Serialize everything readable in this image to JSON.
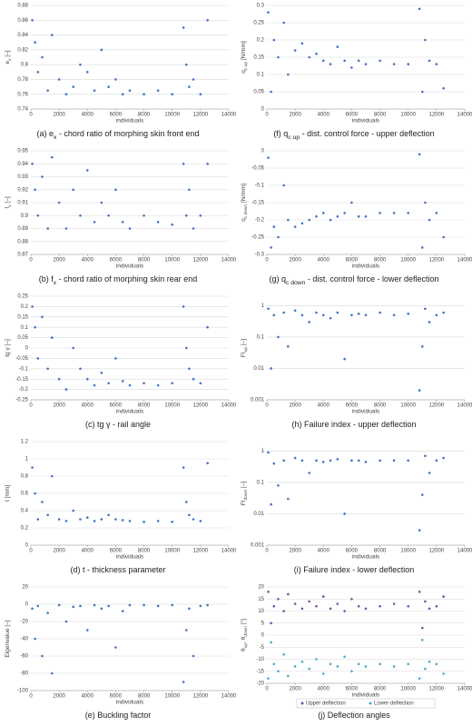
{
  "chart_data": [
    {
      "type": "scatter",
      "color": "#4472c4",
      "grid": true,
      "log": false,
      "ylabel": {
        "text": "e",
        "sub": "x",
        "rest": " [–]"
      },
      "xlabel": "individuals",
      "caption": {
        "text": "(a) e",
        "sub": "x",
        "rest": " - chord ratio of morphing skin front end"
      },
      "xlim": [
        0,
        14000
      ],
      "xticks": [
        0,
        2000,
        4000,
        6000,
        8000,
        10000,
        12000,
        14000
      ],
      "ylim": [
        0.74,
        0.88
      ],
      "yticks": [
        0.74,
        0.76,
        0.78,
        0.8,
        0.82,
        0.84,
        0.86,
        0.88
      ],
      "x": [
        100,
        300,
        500,
        800,
        1200,
        1500,
        2000,
        2500,
        3000,
        3500,
        4000,
        4500,
        5000,
        5500,
        6000,
        6500,
        7000,
        8000,
        9000,
        10000,
        10800,
        11000,
        11200,
        11500,
        12000,
        12500
      ],
      "values": [
        0.86,
        0.83,
        0.79,
        0.81,
        0.765,
        0.84,
        0.78,
        0.76,
        0.77,
        0.8,
        0.79,
        0.765,
        0.82,
        0.77,
        0.78,
        0.76,
        0.765,
        0.76,
        0.765,
        0.76,
        0.85,
        0.8,
        0.77,
        0.78,
        0.76,
        0.86
      ]
    },
    {
      "type": "scatter",
      "color": "#4472c4",
      "grid": true,
      "log": false,
      "ylabel": {
        "text": "q",
        "sub": "c up",
        "rest": " [N/mm]"
      },
      "xlabel": "individuals",
      "caption": {
        "text": "(f) q",
        "sub": "c up",
        "rest": " - dist. control force - upper deflection"
      },
      "xlim": [
        0,
        14000
      ],
      "xticks": [
        0,
        2000,
        4000,
        6000,
        8000,
        10000,
        12000,
        14000
      ],
      "ylim": [
        0,
        0.3
      ],
      "yticks": [
        0,
        0.05,
        0.1,
        0.15,
        0.2,
        0.25,
        0.3
      ],
      "x": [
        100,
        300,
        500,
        800,
        1200,
        1500,
        2000,
        2500,
        3000,
        3500,
        4000,
        4500,
        5000,
        5500,
        6000,
        6500,
        7000,
        8000,
        9000,
        10000,
        10800,
        11000,
        11200,
        11500,
        12000,
        12500
      ],
      "values": [
        0.28,
        0.05,
        0.2,
        0.15,
        0.25,
        0.1,
        0.17,
        0.19,
        0.15,
        0.16,
        0.14,
        0.13,
        0.18,
        0.14,
        0.12,
        0.14,
        0.13,
        0.14,
        0.13,
        0.13,
        0.29,
        0.05,
        0.2,
        0.14,
        0.13,
        0.06
      ]
    },
    {
      "type": "scatter",
      "color": "#4472c4",
      "grid": true,
      "log": false,
      "ylabel": {
        "text": "f",
        "sub": "x",
        "rest": " [–]"
      },
      "xlabel": "individuals",
      "caption": {
        "text": "(b) f",
        "sub": "x",
        "rest": " - chord ratio of morphing skin rear end"
      },
      "xlim": [
        0,
        14000
      ],
      "xticks": [
        0,
        2000,
        4000,
        6000,
        8000,
        10000,
        12000,
        14000
      ],
      "ylim": [
        0.87,
        0.95
      ],
      "yticks": [
        0.87,
        0.88,
        0.89,
        0.9,
        0.91,
        0.92,
        0.93,
        0.94,
        0.95
      ],
      "x": [
        100,
        300,
        500,
        800,
        1200,
        1500,
        2000,
        2500,
        3000,
        3500,
        4000,
        4500,
        5000,
        5500,
        6000,
        6500,
        7000,
        8000,
        9000,
        10000,
        10800,
        11000,
        11200,
        11500,
        12000,
        12500
      ],
      "values": [
        0.94,
        0.92,
        0.9,
        0.93,
        0.89,
        0.945,
        0.91,
        0.89,
        0.92,
        0.9,
        0.935,
        0.895,
        0.91,
        0.9,
        0.92,
        0.895,
        0.89,
        0.9,
        0.895,
        0.893,
        0.94,
        0.9,
        0.92,
        0.89,
        0.9,
        0.94
      ]
    },
    {
      "type": "scatter",
      "color": "#4472c4",
      "grid": true,
      "log": false,
      "ylabel": {
        "text": "q",
        "sub": "c down",
        "rest": " [N/mm]"
      },
      "xlabel": "individuals",
      "caption": {
        "text": "(g) q",
        "sub": "c down",
        "rest": " - dist. control force - lower deflection"
      },
      "xlim": [
        0,
        14000
      ],
      "xticks": [
        0,
        2000,
        4000,
        6000,
        8000,
        10000,
        12000,
        14000
      ],
      "ylim": [
        -0.3,
        0
      ],
      "yticks": [
        -0.3,
        -0.25,
        -0.2,
        -0.15,
        -0.1,
        -0.05,
        0
      ],
      "x": [
        100,
        300,
        500,
        800,
        1200,
        1500,
        2000,
        2500,
        3000,
        3500,
        4000,
        4500,
        5000,
        5500,
        6000,
        6500,
        7000,
        8000,
        9000,
        10000,
        10800,
        11000,
        11200,
        11500,
        12000,
        12500
      ],
      "values": [
        -0.02,
        -0.28,
        -0.22,
        -0.25,
        -0.1,
        -0.2,
        -0.22,
        -0.21,
        -0.2,
        -0.19,
        -0.18,
        -0.2,
        -0.19,
        -0.18,
        -0.15,
        -0.19,
        -0.19,
        -0.18,
        -0.18,
        -0.18,
        -0.01,
        -0.28,
        -0.15,
        -0.2,
        -0.18,
        -0.25
      ]
    },
    {
      "type": "scatter",
      "color": "#4472c4",
      "grid": true,
      "log": false,
      "ylabel": {
        "text": "tg γ [–]"
      },
      "xlabel": "individuals",
      "caption": {
        "text": "(c) tg γ - rail angle"
      },
      "xlim": [
        0,
        14000
      ],
      "xticks": [
        0,
        2000,
        4000,
        6000,
        8000,
        10000,
        12000,
        14000
      ],
      "ylim": [
        -0.25,
        0.25
      ],
      "yticks": [
        -0.25,
        -0.2,
        -0.15,
        -0.1,
        -0.05,
        0,
        0.05,
        0.1,
        0.15,
        0.2,
        0.25
      ],
      "x": [
        100,
        300,
        500,
        800,
        1200,
        1500,
        2000,
        2500,
        3000,
        3500,
        4000,
        4500,
        5000,
        5500,
        6000,
        6500,
        7000,
        8000,
        9000,
        10000,
        10800,
        11000,
        11200,
        11500,
        12000,
        12500
      ],
      "values": [
        0.2,
        0.1,
        -0.05,
        0.15,
        -0.1,
        0.05,
        -0.15,
        -0.2,
        0.0,
        -0.1,
        -0.15,
        -0.18,
        -0.12,
        -0.17,
        -0.05,
        -0.16,
        -0.18,
        -0.17,
        -0.18,
        -0.17,
        0.2,
        0.0,
        -0.1,
        -0.15,
        -0.17,
        0.1
      ]
    },
    {
      "type": "scatter",
      "color": "#4472c4",
      "grid": true,
      "log": true,
      "ylabel": {
        "text": "FI",
        "sub": "up",
        "rest": " [–]"
      },
      "xlabel": "individuals",
      "caption": {
        "text": "(h) Failure index - upper deflection"
      },
      "xlim": [
        0,
        14000
      ],
      "xticks": [
        0,
        2000,
        4000,
        6000,
        8000,
        10000,
        12000,
        14000
      ],
      "ylim": [
        0.001,
        2
      ],
      "yticks": [
        0.001,
        0.01,
        0.1,
        1
      ],
      "x": [
        100,
        300,
        500,
        800,
        1200,
        1500,
        2000,
        2500,
        3000,
        3500,
        4000,
        4500,
        5000,
        5500,
        6000,
        6500,
        7000,
        8000,
        9000,
        10000,
        10800,
        11000,
        11200,
        11500,
        12000,
        12500
      ],
      "values": [
        0.8,
        0.01,
        0.5,
        0.1,
        0.6,
        0.05,
        0.7,
        0.5,
        0.3,
        0.6,
        0.5,
        0.4,
        0.6,
        0.02,
        0.5,
        0.55,
        0.5,
        0.6,
        0.5,
        0.55,
        0.002,
        0.05,
        0.8,
        0.3,
        0.5,
        0.6
      ]
    },
    {
      "type": "scatter",
      "color": "#4472c4",
      "grid": true,
      "log": false,
      "ylabel": {
        "text": "t [mm]"
      },
      "xlabel": "individuals",
      "caption": {
        "text": "(d) t - thickness parameter"
      },
      "xlim": [
        0,
        14000
      ],
      "xticks": [
        0,
        2000,
        4000,
        6000,
        8000,
        10000,
        12000,
        14000
      ],
      "ylim": [
        0,
        1.2
      ],
      "yticks": [
        0,
        0.2,
        0.4,
        0.6,
        0.8,
        1,
        1.2
      ],
      "x": [
        100,
        300,
        500,
        800,
        1200,
        1500,
        2000,
        2500,
        3000,
        3500,
        4000,
        4500,
        5000,
        5500,
        6000,
        6500,
        7000,
        8000,
        9000,
        10000,
        10800,
        11000,
        11200,
        11500,
        12000,
        12500
      ],
      "values": [
        0.9,
        0.6,
        0.3,
        0.5,
        0.35,
        0.8,
        0.3,
        0.28,
        0.4,
        0.3,
        0.32,
        0.28,
        0.3,
        0.35,
        0.3,
        0.29,
        0.28,
        0.27,
        0.28,
        0.27,
        0.9,
        0.5,
        0.35,
        0.3,
        0.28,
        0.95
      ]
    },
    {
      "type": "scatter",
      "color": "#4472c4",
      "grid": true,
      "log": true,
      "ylabel": {
        "text": "FI",
        "sub": "down",
        "rest": " [–]"
      },
      "xlabel": "individuals",
      "caption": {
        "text": "(i) Failure index - lower deflection"
      },
      "xlim": [
        0,
        14000
      ],
      "xticks": [
        0,
        2000,
        4000,
        6000,
        8000,
        10000,
        12000,
        14000
      ],
      "ylim": [
        0.001,
        2
      ],
      "yticks": [
        0.001,
        0.01,
        0.1,
        1
      ],
      "x": [
        100,
        300,
        500,
        800,
        1200,
        1500,
        2000,
        2500,
        3000,
        3500,
        4000,
        4500,
        5000,
        5500,
        6000,
        6500,
        7000,
        8000,
        9000,
        10000,
        10800,
        11000,
        11200,
        11500,
        12000,
        12500
      ],
      "values": [
        0.9,
        0.02,
        0.4,
        0.08,
        0.5,
        0.03,
        0.6,
        0.5,
        0.2,
        0.5,
        0.45,
        0.5,
        0.55,
        0.01,
        0.5,
        0.5,
        0.45,
        0.5,
        0.5,
        0.5,
        0.003,
        0.04,
        0.7,
        0.2,
        0.5,
        0.6
      ]
    },
    {
      "type": "scatter",
      "color": "#4472c4",
      "grid": true,
      "log": false,
      "ylabel": {
        "text": "Eigenvalue [–]"
      },
      "xlabel": "individuals",
      "caption": {
        "text": "(e) Buckling factor"
      },
      "xlim": [
        0,
        14000
      ],
      "xticks": [
        0,
        2000,
        4000,
        6000,
        8000,
        10000,
        12000,
        14000
      ],
      "ylim": [
        -100,
        20
      ],
      "yticks": [
        -100,
        -80,
        -60,
        -40,
        -20,
        0,
        20
      ],
      "x": [
        100,
        300,
        500,
        800,
        1200,
        1500,
        2000,
        2500,
        3000,
        3500,
        4000,
        4500,
        5000,
        5500,
        6000,
        6500,
        7000,
        8000,
        9000,
        10000,
        10800,
        11000,
        11200,
        11500,
        12000,
        12500
      ],
      "values": [
        -5,
        -40,
        -2,
        -60,
        -10,
        -80,
        -1,
        -20,
        -3,
        -2,
        -30,
        -1,
        -5,
        -2,
        -50,
        -8,
        -1,
        -1,
        -2,
        -1,
        -90,
        -30,
        -5,
        -60,
        -2,
        -1
      ]
    },
    {
      "type": "scatter",
      "grid": true,
      "log": false,
      "ylabel": {
        "text": "θ",
        "sub": "up",
        "rest": ", θ",
        "sub2": "down",
        "rest2": " [°]"
      },
      "xlabel": "individuals",
      "caption": {
        "text": "(j) Deflection angles"
      },
      "xlim": [
        0,
        14000
      ],
      "xticks": [
        0,
        2000,
        4000,
        6000,
        8000,
        10000,
        12000,
        14000
      ],
      "ylim": [
        -20,
        20
      ],
      "yticks": [
        -20,
        -15,
        -10,
        -5,
        0,
        5,
        10,
        15,
        20
      ],
      "x": [
        100,
        300,
        500,
        800,
        1200,
        1500,
        2000,
        2500,
        3000,
        3500,
        4000,
        4500,
        5000,
        5500,
        6000,
        6500,
        7000,
        8000,
        9000,
        10000,
        10800,
        11000,
        11200,
        11500,
        12000,
        12500
      ],
      "series": [
        {
          "name": "Upper deflection",
          "color": "#7b4fa0",
          "values": [
            18,
            5,
            12,
            15,
            10,
            17,
            13,
            11,
            14,
            12,
            16,
            11,
            13,
            10,
            15,
            12,
            11,
            12,
            13,
            12,
            18,
            3,
            14,
            11,
            12,
            16
          ]
        },
        {
          "name": "Lower deflection",
          "color": "#4bacc6",
          "values": [
            -18,
            -3,
            -12,
            -15,
            -8,
            -17,
            -13,
            -11,
            -14,
            -10,
            -16,
            -12,
            -13,
            -9,
            -15,
            -12,
            -13,
            -12,
            -13,
            -12,
            -18,
            -2,
            -14,
            -11,
            -12,
            -16
          ]
        }
      ]
    }
  ]
}
